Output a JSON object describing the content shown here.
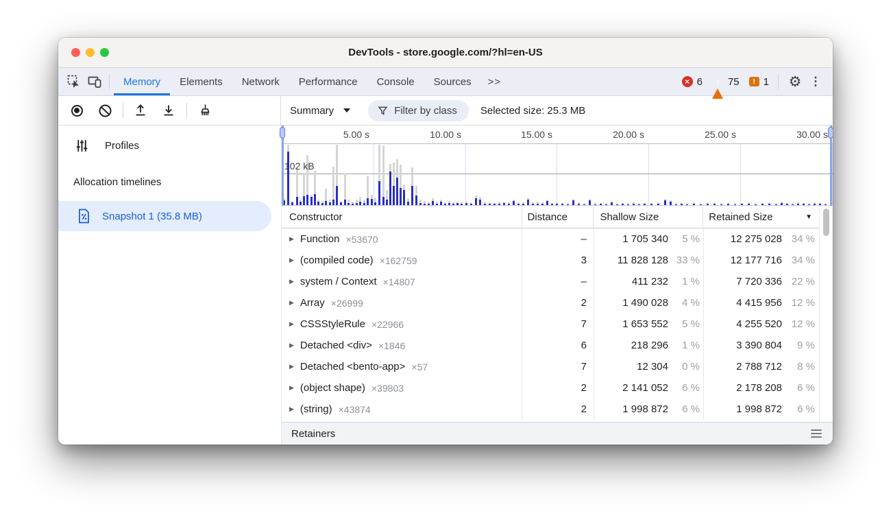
{
  "window": {
    "title": "DevTools - store.google.com/?hl=en-US"
  },
  "tabbar": {
    "tabs": [
      {
        "label": "Memory",
        "active": true
      },
      {
        "label": "Elements",
        "active": false
      },
      {
        "label": "Network",
        "active": false
      },
      {
        "label": "Performance",
        "active": false
      },
      {
        "label": "Console",
        "active": false
      },
      {
        "label": "Sources",
        "active": false
      }
    ],
    "overflow_label": ">>",
    "badges": {
      "errors": "6",
      "warnings": "75",
      "issues": "1"
    }
  },
  "toolbar": {
    "view_mode": "Summary",
    "filter_placeholder": "Filter by class",
    "selected_size": "Selected size: 25.3 MB"
  },
  "sidebar": {
    "profiles_label": "Profiles",
    "section_label": "Allocation timelines",
    "snapshot_label": "Snapshot 1 (35.8 MB)"
  },
  "timeline": {
    "ticks": [
      "5.00 s",
      "10.00 s",
      "15.00 s",
      "20.00 s",
      "25.00 s",
      "30.00 s"
    ],
    "y_axis_label": "102 kB",
    "bars": [
      [
        2,
        10,
        7
      ],
      [
        8,
        88,
        78
      ],
      [
        14,
        6,
        4
      ],
      [
        21,
        52,
        12
      ],
      [
        26,
        8,
        5
      ],
      [
        31,
        47,
        13
      ],
      [
        36,
        73,
        15
      ],
      [
        42,
        14,
        12
      ],
      [
        47,
        50,
        16
      ],
      [
        52,
        8,
        5
      ],
      [
        58,
        6,
        3
      ],
      [
        63,
        24,
        6
      ],
      [
        69,
        8,
        4
      ],
      [
        74,
        56,
        8
      ],
      [
        79,
        88,
        28
      ],
      [
        85,
        6,
        4
      ],
      [
        91,
        46,
        8
      ],
      [
        96,
        8,
        3
      ],
      [
        102,
        5,
        2
      ],
      [
        108,
        8,
        3
      ],
      [
        113,
        12,
        5
      ],
      [
        119,
        8,
        3
      ],
      [
        124,
        42,
        10
      ],
      [
        130,
        15,
        9
      ],
      [
        135,
        10,
        4
      ],
      [
        141,
        88,
        35
      ],
      [
        147,
        87,
        12
      ],
      [
        152,
        22,
        8
      ],
      [
        157,
        60,
        49
      ],
      [
        162,
        62,
        28
      ],
      [
        167,
        67,
        40
      ],
      [
        172,
        59,
        25
      ],
      [
        177,
        30,
        22
      ],
      [
        183,
        10,
        5
      ],
      [
        189,
        55,
        28
      ],
      [
        195,
        28,
        14
      ],
      [
        201,
        8,
        3
      ],
      [
        207,
        6,
        2
      ],
      [
        213,
        5,
        2
      ],
      [
        219,
        10,
        6
      ],
      [
        225,
        5,
        2
      ],
      [
        231,
        8,
        5
      ],
      [
        237,
        4,
        2
      ],
      [
        243,
        6,
        3
      ],
      [
        249,
        4,
        2
      ],
      [
        255,
        5,
        3
      ],
      [
        261,
        4,
        2
      ],
      [
        268,
        5,
        3
      ],
      [
        275,
        4,
        2
      ],
      [
        282,
        14,
        10
      ],
      [
        288,
        12,
        8
      ],
      [
        295,
        5,
        2
      ],
      [
        302,
        4,
        2
      ],
      [
        309,
        3,
        2
      ],
      [
        316,
        4,
        2
      ],
      [
        323,
        5,
        3
      ],
      [
        330,
        4,
        2
      ],
      [
        337,
        8,
        6
      ],
      [
        344,
        4,
        2
      ],
      [
        351,
        4,
        2
      ],
      [
        358,
        10,
        8
      ],
      [
        365,
        4,
        2
      ],
      [
        372,
        5,
        2
      ],
      [
        379,
        4,
        2
      ],
      [
        386,
        8,
        6
      ],
      [
        393,
        3,
        2
      ],
      [
        400,
        3,
        2
      ],
      [
        408,
        3,
        2
      ],
      [
        416,
        3,
        1
      ],
      [
        424,
        9,
        7
      ],
      [
        432,
        4,
        2
      ],
      [
        440,
        3,
        1
      ],
      [
        448,
        9,
        7
      ],
      [
        456,
        3,
        1
      ],
      [
        464,
        3,
        2
      ],
      [
        472,
        3,
        1
      ],
      [
        480,
        6,
        4
      ],
      [
        488,
        3,
        1
      ],
      [
        496,
        3,
        2
      ],
      [
        504,
        3,
        1
      ],
      [
        512,
        4,
        2
      ],
      [
        520,
        3,
        1
      ],
      [
        528,
        3,
        2
      ],
      [
        538,
        3,
        2
      ],
      [
        548,
        4,
        2
      ],
      [
        558,
        9,
        7
      ],
      [
        566,
        7,
        5
      ],
      [
        574,
        3,
        1
      ],
      [
        582,
        3,
        2
      ],
      [
        590,
        3,
        1
      ],
      [
        600,
        4,
        2
      ],
      [
        610,
        3,
        1
      ],
      [
        620,
        3,
        2
      ],
      [
        630,
        4,
        2
      ],
      [
        640,
        3,
        1
      ],
      [
        650,
        3,
        2
      ],
      [
        660,
        3,
        1
      ],
      [
        670,
        3,
        2
      ],
      [
        680,
        4,
        2
      ],
      [
        690,
        3,
        1
      ],
      [
        700,
        3,
        2
      ],
      [
        710,
        4,
        2
      ],
      [
        720,
        3,
        1
      ],
      [
        728,
        5,
        3
      ],
      [
        736,
        3,
        2
      ],
      [
        744,
        3,
        1
      ],
      [
        752,
        4,
        2
      ],
      [
        760,
        3,
        2
      ],
      [
        768,
        3,
        1
      ],
      [
        776,
        4,
        2
      ],
      [
        784,
        3,
        2
      ],
      [
        792,
        3,
        1
      ]
    ],
    "colors": {
      "bar_blue": "#2a2fc1",
      "bar_gray": "#d5d5d5"
    }
  },
  "table": {
    "columns": [
      "Constructor",
      "Distance",
      "Shallow Size",
      "Retained Size"
    ],
    "sorted_column": "Retained Size",
    "sort_arrow": "▼",
    "rows": [
      {
        "name": "Function",
        "count": "×53670",
        "distance": "–",
        "shallow": "1 705 340",
        "shallow_pct": "5 %",
        "retained": "12 275 028",
        "retained_pct": "34 %"
      },
      {
        "name": "(compiled code)",
        "count": "×162759",
        "distance": "3",
        "shallow": "11 828 128",
        "shallow_pct": "33 %",
        "retained": "12 177 716",
        "retained_pct": "34 %"
      },
      {
        "name": "system / Context",
        "count": "×14807",
        "distance": "–",
        "shallow": "411 232",
        "shallow_pct": "1 %",
        "retained": "7 720 336",
        "retained_pct": "22 %"
      },
      {
        "name": "Array",
        "count": "×26999",
        "distance": "2",
        "shallow": "1 490 028",
        "shallow_pct": "4 %",
        "retained": "4 415 956",
        "retained_pct": "12 %"
      },
      {
        "name": "CSSStyleRule",
        "count": "×22966",
        "distance": "7",
        "shallow": "1 653 552",
        "shallow_pct": "5 %",
        "retained": "4 255 520",
        "retained_pct": "12 %"
      },
      {
        "name": "Detached <div>",
        "count": "×1846",
        "distance": "6",
        "shallow": "218 296",
        "shallow_pct": "1 %",
        "retained": "3 390 804",
        "retained_pct": "9 %"
      },
      {
        "name": "Detached <bento-app>",
        "count": "×57",
        "distance": "7",
        "shallow": "12 304",
        "shallow_pct": "0 %",
        "retained": "2 788 712",
        "retained_pct": "8 %"
      },
      {
        "name": "(object shape)",
        "count": "×39803",
        "distance": "2",
        "shallow": "2 141 052",
        "shallow_pct": "6 %",
        "retained": "2 178 208",
        "retained_pct": "6 %"
      },
      {
        "name": "(string)",
        "count": "×43874",
        "distance": "2",
        "shallow": "1 998 872",
        "shallow_pct": "6 %",
        "retained": "1 998 872",
        "retained_pct": "6 %"
      }
    ]
  },
  "retainers": {
    "label": "Retainers"
  },
  "colors": {
    "accent": "#1a73e8",
    "error": "#d93025",
    "warning": "#e8710a",
    "issue": "#d9730d",
    "snapshot_text": "#1a5fd0"
  }
}
